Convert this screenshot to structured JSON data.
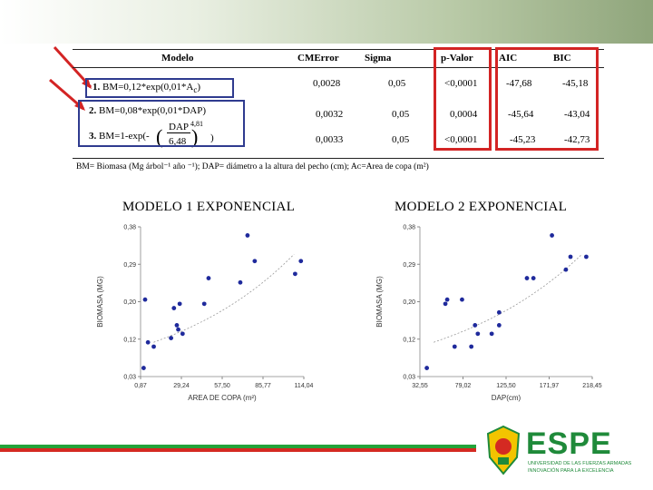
{
  "table": {
    "headers": [
      "Modelo",
      "CMError",
      "Sigma",
      "p-Valor",
      "AIC",
      "BIC"
    ],
    "rows": [
      {
        "model_num": "1.",
        "model_expr": "BM=0,12*exp(0,01*A",
        "model_sub": "c",
        "model_end": ")",
        "cmerror": "0,0028",
        "sigma": "0,05",
        "pvalor": "<0,0001",
        "aic": "-47,68",
        "bic": "-45,18"
      },
      {
        "model_num": "2.",
        "model_expr": "BM=0,08*exp(0,01*DAP)",
        "model_sub": "",
        "model_end": "",
        "cmerror": "0,0032",
        "sigma": "0,05",
        "pvalor": "0,0004",
        "aic": "-45,64",
        "bic": "-43,04"
      },
      {
        "model_num": "3.",
        "model_expr": "BM=1-exp(-",
        "model_frac_num": "DAP",
        "model_frac_den": "6,48",
        "model_pow": "4,81",
        "model_end": ")",
        "cmerror": "0,0033",
        "sigma": "0,05",
        "pvalor": "<0,0001",
        "aic": "-45,23",
        "bic": "-42,73"
      }
    ],
    "footnote": "BM= Biomasa (Mg árbol⁻¹ año ⁻¹); DAP= diámetro a la altura del pecho (cm); Aᴄ=Area de copa (m²)"
  },
  "charts_titles": {
    "left": "MODELO 1 EXPONENCIAL",
    "right": "MODELO 2 EXPONENCIAL"
  },
  "chart_data": [
    {
      "type": "scatter",
      "title": "MODELO 1 EXPONENCIAL",
      "xlabel": "AREA DE COPA (m²)",
      "ylabel": "BIOMASA (MG)",
      "x_ticks": [
        "0,87",
        "29,24",
        "57,50",
        "85,77",
        "114,04"
      ],
      "y_ticks": [
        "0,03",
        "0,12",
        "0,20",
        "0,29",
        "0,38"
      ],
      "xlim": [
        0.87,
        114.04
      ],
      "ylim": [
        0.03,
        0.38
      ],
      "points": [
        [
          3,
          0.05
        ],
        [
          4,
          0.21
        ],
        [
          6,
          0.11
        ],
        [
          10,
          0.1
        ],
        [
          22,
          0.12
        ],
        [
          24,
          0.19
        ],
        [
          26,
          0.15
        ],
        [
          27,
          0.14
        ],
        [
          28,
          0.2
        ],
        [
          30,
          0.13
        ],
        [
          45,
          0.2
        ],
        [
          48,
          0.26
        ],
        [
          70,
          0.25
        ],
        [
          75,
          0.36
        ],
        [
          80,
          0.3
        ],
        [
          108,
          0.27
        ],
        [
          112,
          0.3
        ]
      ],
      "trend": "exponential"
    },
    {
      "type": "scatter",
      "title": "MODELO 2 EXPONENCIAL",
      "xlabel": "DAP(cm)",
      "ylabel": "BIOMASA (MG)",
      "x_ticks": [
        "32,55",
        "79,02",
        "125,50",
        "171,97",
        "218,45"
      ],
      "y_ticks": [
        "0,03",
        "0,12",
        "0,20",
        "0,29",
        "0,38"
      ],
      "xlim": [
        32.55,
        218.45
      ],
      "ylim": [
        0.03,
        0.38
      ],
      "points": [
        [
          40,
          0.05
        ],
        [
          60,
          0.2
        ],
        [
          62,
          0.21
        ],
        [
          70,
          0.1
        ],
        [
          78,
          0.21
        ],
        [
          88,
          0.1
        ],
        [
          92,
          0.15
        ],
        [
          95,
          0.13
        ],
        [
          110,
          0.13
        ],
        [
          118,
          0.18
        ],
        [
          118,
          0.15
        ],
        [
          148,
          0.26
        ],
        [
          155,
          0.26
        ],
        [
          175,
          0.36
        ],
        [
          190,
          0.28
        ],
        [
          195,
          0.31
        ],
        [
          212,
          0.31
        ]
      ],
      "trend": "exponential"
    }
  ],
  "logo": {
    "name": "ESPE",
    "sub1": "UNIVERSIDAD DE LAS FUERZAS ARMADAS",
    "sub2": "INNOVACIÓN PARA LA EXCELENCIA",
    "color": "#1f8a3a"
  },
  "colors": {
    "highlight_red": "#d32424",
    "highlight_blue": "#2f3b8f",
    "points": "#1f2a9c"
  }
}
